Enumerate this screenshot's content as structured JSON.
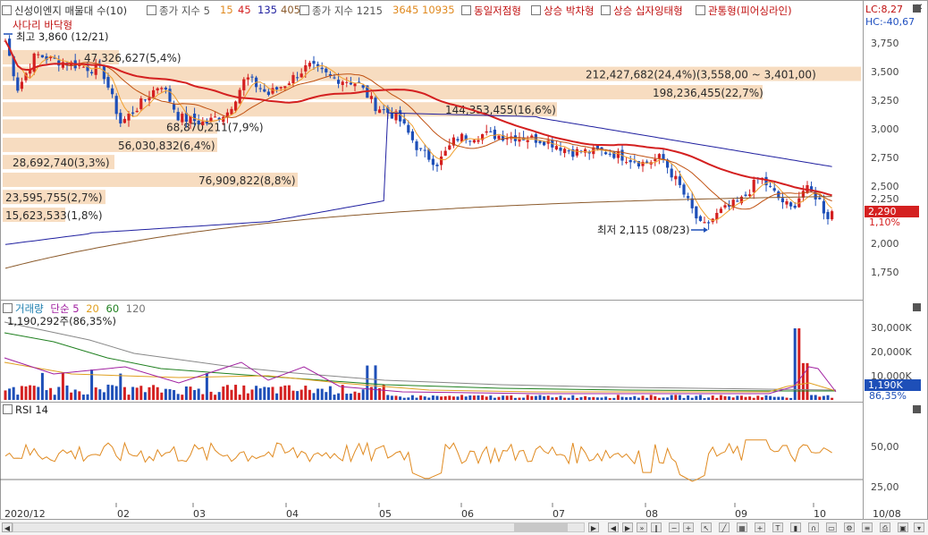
{
  "toolbar": {
    "title": "신성이엔지 매물대 수(10)",
    "ma_label": "종가 지수 5",
    "ma_values": [
      "15",
      "45",
      "135",
      "405"
    ],
    "ma2_label": "종가 지수 1215",
    "ma2_values": [
      "3645",
      "10935"
    ],
    "patterns": [
      "동일저점형",
      "상승 박차형",
      "상승 십자잉태형",
      "관통형(피어싱라인)"
    ],
    "lc": "LC:8,27",
    "hc": "HC:-40,67"
  },
  "colors": {
    "up": "#d42020",
    "down": "#1e4fb8",
    "volume_band": "#f7dcc0",
    "ma5": "#f0a030",
    "ma15": "#c05010",
    "ma45": "#d42020",
    "ma135": "#2020a0",
    "ma405": "#8b5a2b",
    "rsi": "#e08a20",
    "rsi_fill": "#9ed6ee"
  },
  "price_panel": {
    "pattern_label": "사다리 바닥형",
    "high_label": "최고 3,860 (12/21)",
    "low_label": "최저 2,115 (08/23)",
    "current_price": "2,290",
    "current_pct": "1,10%",
    "axis_ticks": [
      "3,750",
      "3,500",
      "3,250",
      "3,000",
      "2,750",
      "2,500",
      "2,250",
      "2,000",
      "1,750"
    ],
    "volume_profile": [
      {
        "label": "47,326,627(5,4%)",
        "price": 3625
      },
      {
        "label": "212,427,682(24,4%)(3,558,00 ~ 3,401,00)",
        "price": 3480
      },
      {
        "label": "198,236,455(22,7%)",
        "price": 3320
      },
      {
        "label": "144,353,455(16,6%)",
        "price": 3170
      },
      {
        "label": "68,870,211(7,9%)",
        "price": 3020
      },
      {
        "label": "56,030,832(6,4%)",
        "price": 2860
      },
      {
        "label": "28,692,740(3,3%)",
        "price": 2710
      },
      {
        "label": "76,909,822(8,8%)",
        "price": 2555
      },
      {
        "label": "23,595,755(2,7%)",
        "price": 2405
      },
      {
        "label": "15,623,533(1,8%)",
        "price": 2250
      }
    ]
  },
  "volume_panel": {
    "legend_title": "거래량",
    "legend_sub": "단순 5",
    "legend_values": [
      "20",
      "60",
      "120"
    ],
    "last_value": "1,190,292주(86,35%)",
    "axis_ticks": [
      "30,000K",
      "20,000K",
      "10,000K"
    ],
    "current": "1,190K",
    "current_pct": "86,35%"
  },
  "rsi_panel": {
    "legend": "RSI 14",
    "axis_ticks": [
      "50,00",
      "25,00"
    ]
  },
  "x_axis": {
    "labels": [
      "2020/12",
      "02",
      "03",
      "04",
      "05",
      "06",
      "07",
      "08",
      "09",
      "10",
      "10/08"
    ]
  }
}
